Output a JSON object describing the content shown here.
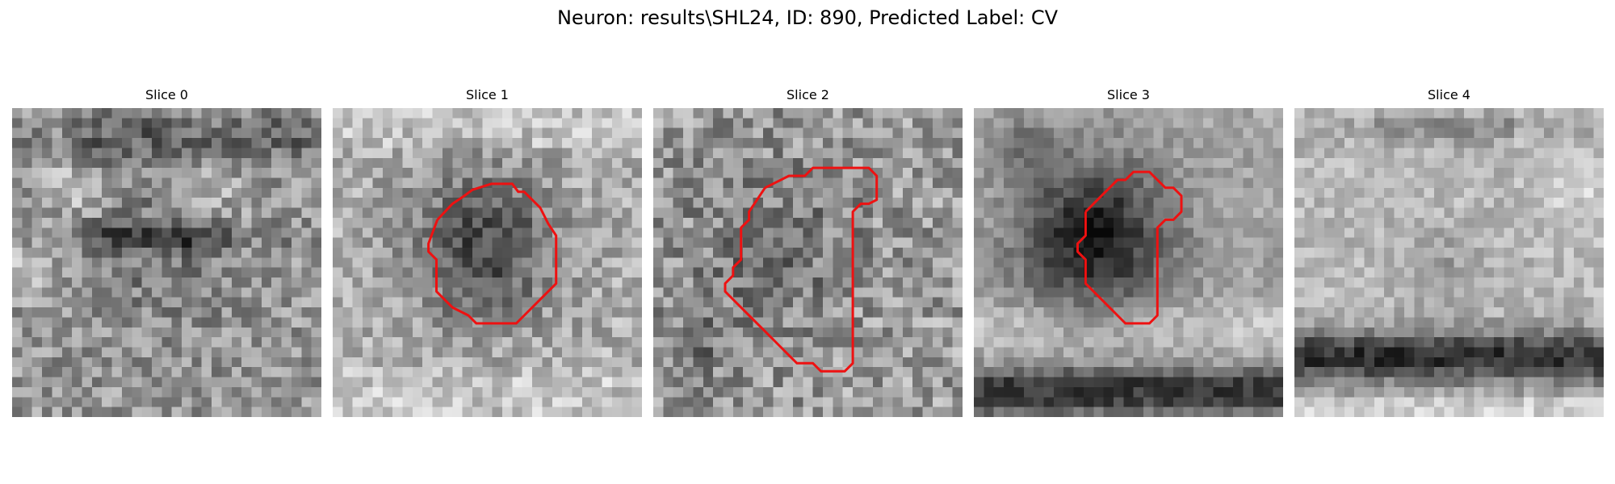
{
  "figure": {
    "title": "Neuron: results\\SHL24, ID: 890, Predicted Label: CV",
    "contour_color": "#ee1111"
  },
  "panels": [
    {
      "title": "Slice 0",
      "has_contour": false
    },
    {
      "title": "Slice 1",
      "has_contour": true
    },
    {
      "title": "Slice 2",
      "has_contour": true
    },
    {
      "title": "Slice 3",
      "has_contour": true
    },
    {
      "title": "Slice 4",
      "has_contour": false
    }
  ]
}
